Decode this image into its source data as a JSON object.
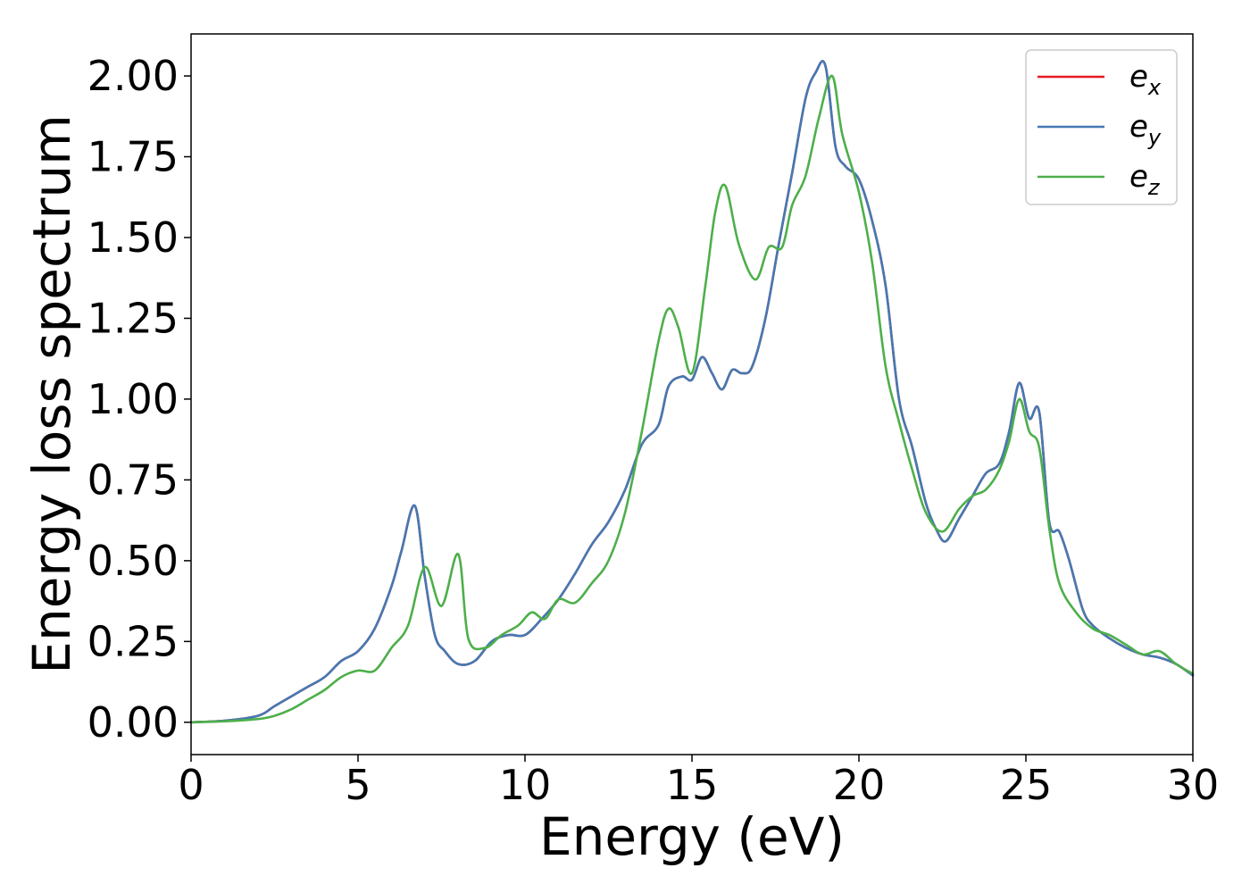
{
  "chart_data": {
    "type": "line",
    "xlabel": "Energy (eV)",
    "ylabel": "Energy loss spectrum",
    "xlim": [
      0,
      30
    ],
    "ylim": [
      -0.1,
      2.13
    ],
    "xticks": [
      0,
      5,
      10,
      15,
      20,
      25,
      30
    ],
    "yticks": [
      0.0,
      0.25,
      0.5,
      0.75,
      1.0,
      1.25,
      1.5,
      1.75,
      2.0
    ],
    "xtick_labels": [
      "0",
      "5",
      "10",
      "15",
      "20",
      "25",
      "30"
    ],
    "ytick_labels": [
      "0.00",
      "0.25",
      "0.50",
      "0.75",
      "1.00",
      "1.25",
      "1.50",
      "1.75",
      "2.00"
    ],
    "grid": false,
    "legend_position": "top-right",
    "series": [
      {
        "name": "e_x",
        "label_base": "e",
        "label_sub": "x",
        "color": "#e41a1c",
        "x": [
          0,
          1,
          2,
          2.5,
          3,
          3.5,
          4,
          4.5,
          5,
          5.5,
          6,
          6.3,
          6.7,
          7.0,
          7.3,
          7.6,
          8.0,
          8.5,
          9.0,
          9.5,
          10.0,
          10.5,
          11.0,
          11.5,
          12.0,
          12.5,
          13.0,
          13.5,
          14.0,
          14.3,
          14.7,
          15.0,
          15.3,
          15.6,
          15.9,
          16.2,
          16.5,
          16.8,
          17.2,
          17.6,
          18.0,
          18.4,
          18.7,
          19.0,
          19.3,
          19.6,
          20.0,
          20.4,
          20.8,
          21.2,
          21.6,
          22.0,
          22.3,
          22.6,
          23.0,
          23.4,
          23.8,
          24.2,
          24.5,
          24.8,
          25.1,
          25.4,
          25.7,
          26.0,
          26.3,
          26.7,
          27.0,
          27.5,
          28.0,
          28.5,
          29.0,
          29.5,
          30.0
        ],
        "y": [
          0.0,
          0.005,
          0.02,
          0.05,
          0.08,
          0.11,
          0.14,
          0.19,
          0.22,
          0.29,
          0.42,
          0.53,
          0.67,
          0.45,
          0.27,
          0.22,
          0.18,
          0.19,
          0.25,
          0.27,
          0.27,
          0.32,
          0.38,
          0.46,
          0.55,
          0.62,
          0.72,
          0.86,
          0.92,
          1.04,
          1.07,
          1.06,
          1.13,
          1.08,
          1.03,
          1.09,
          1.08,
          1.1,
          1.25,
          1.48,
          1.7,
          1.93,
          2.01,
          2.03,
          1.78,
          1.72,
          1.68,
          1.55,
          1.35,
          1.0,
          0.85,
          0.68,
          0.6,
          0.56,
          0.63,
          0.7,
          0.77,
          0.8,
          0.9,
          1.05,
          0.94,
          0.96,
          0.62,
          0.59,
          0.5,
          0.35,
          0.3,
          0.26,
          0.23,
          0.21,
          0.2,
          0.18,
          0.145
        ]
      },
      {
        "name": "e_y",
        "label_base": "e",
        "label_sub": "y",
        "color": "#4479b3",
        "x": [
          0,
          1,
          2,
          2.5,
          3,
          3.5,
          4,
          4.5,
          5,
          5.5,
          6,
          6.3,
          6.7,
          7.0,
          7.3,
          7.6,
          8.0,
          8.5,
          9.0,
          9.5,
          10.0,
          10.5,
          11.0,
          11.5,
          12.0,
          12.5,
          13.0,
          13.5,
          14.0,
          14.3,
          14.7,
          15.0,
          15.3,
          15.6,
          15.9,
          16.2,
          16.5,
          16.8,
          17.2,
          17.6,
          18.0,
          18.4,
          18.7,
          19.0,
          19.3,
          19.6,
          20.0,
          20.4,
          20.8,
          21.2,
          21.6,
          22.0,
          22.3,
          22.6,
          23.0,
          23.4,
          23.8,
          24.2,
          24.5,
          24.8,
          25.1,
          25.4,
          25.7,
          26.0,
          26.3,
          26.7,
          27.0,
          27.5,
          28.0,
          28.5,
          29.0,
          29.5,
          30.0
        ],
        "y": [
          0.0,
          0.005,
          0.02,
          0.05,
          0.08,
          0.11,
          0.14,
          0.19,
          0.22,
          0.29,
          0.42,
          0.53,
          0.67,
          0.45,
          0.27,
          0.22,
          0.18,
          0.19,
          0.25,
          0.27,
          0.27,
          0.32,
          0.38,
          0.46,
          0.55,
          0.62,
          0.72,
          0.86,
          0.92,
          1.04,
          1.07,
          1.06,
          1.13,
          1.08,
          1.03,
          1.09,
          1.08,
          1.1,
          1.25,
          1.48,
          1.7,
          1.93,
          2.01,
          2.03,
          1.78,
          1.72,
          1.68,
          1.55,
          1.35,
          1.0,
          0.85,
          0.68,
          0.6,
          0.56,
          0.63,
          0.7,
          0.77,
          0.8,
          0.9,
          1.05,
          0.94,
          0.96,
          0.62,
          0.59,
          0.5,
          0.35,
          0.3,
          0.26,
          0.23,
          0.21,
          0.2,
          0.18,
          0.145
        ]
      },
      {
        "name": "e_z",
        "label_base": "e",
        "label_sub": "z",
        "color": "#4daf4a",
        "x": [
          0,
          1,
          2,
          2.5,
          3,
          3.5,
          4,
          4.5,
          5,
          5.5,
          6,
          6.5,
          7.0,
          7.5,
          8.0,
          8.3,
          8.8,
          9.3,
          9.8,
          10.2,
          10.6,
          11.0,
          11.5,
          12.0,
          12.5,
          13.0,
          13.5,
          14.0,
          14.3,
          14.6,
          15.0,
          15.4,
          15.7,
          16.0,
          16.4,
          16.9,
          17.3,
          17.7,
          18.0,
          18.4,
          18.8,
          19.2,
          19.5,
          20.0,
          20.4,
          20.8,
          21.2,
          21.6,
          22.0,
          22.5,
          23.0,
          23.4,
          23.8,
          24.2,
          24.5,
          24.8,
          25.1,
          25.4,
          25.7,
          26.0,
          26.5,
          27.0,
          27.5,
          28.0,
          28.5,
          29.0,
          29.5,
          30.0
        ],
        "y": [
          0.0,
          0.003,
          0.01,
          0.02,
          0.04,
          0.07,
          0.1,
          0.14,
          0.16,
          0.16,
          0.23,
          0.3,
          0.48,
          0.36,
          0.52,
          0.26,
          0.23,
          0.27,
          0.3,
          0.34,
          0.32,
          0.38,
          0.37,
          0.43,
          0.5,
          0.65,
          0.9,
          1.18,
          1.28,
          1.22,
          1.08,
          1.35,
          1.58,
          1.66,
          1.48,
          1.37,
          1.47,
          1.47,
          1.6,
          1.69,
          1.87,
          2.0,
          1.82,
          1.64,
          1.42,
          1.1,
          0.93,
          0.78,
          0.65,
          0.59,
          0.66,
          0.7,
          0.72,
          0.78,
          0.87,
          1.0,
          0.9,
          0.85,
          0.6,
          0.43,
          0.34,
          0.29,
          0.27,
          0.24,
          0.21,
          0.22,
          0.18,
          0.15
        ]
      }
    ]
  }
}
